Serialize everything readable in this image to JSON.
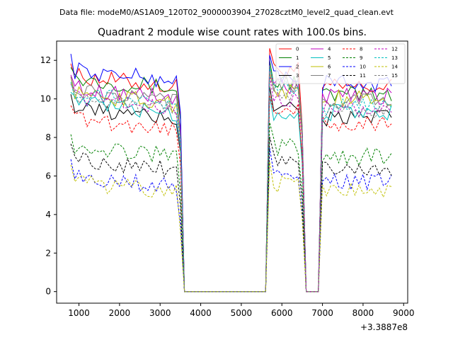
{
  "header": {
    "data_file": "Data file: modeM0/AS1A09_120T02_9000003904_27028cztM0_level2_quad_clean.evt"
  },
  "chart_data": {
    "type": "line",
    "title": "Quadrant 2 module wise count rates with 100.0s bins.",
    "xlabel": "",
    "ylabel": "",
    "x_offset_label": "+3.3887e8",
    "xlim": [
      450,
      9100
    ],
    "ylim": [
      -0.6,
      13.0
    ],
    "x_ticks": [
      1000,
      2000,
      3000,
      4000,
      5000,
      6000,
      7000,
      8000,
      9000
    ],
    "y_ticks": [
      0,
      2,
      4,
      6,
      8,
      10,
      12
    ],
    "grid": false,
    "legend_position": "top-right",
    "segments": [
      [
        800,
        3500
      ],
      [
        5700,
        6500
      ],
      [
        6950,
        8750
      ]
    ],
    "series": [
      {
        "name": "0",
        "color": "#ff0000",
        "dash": "solid",
        "levels": [
          10.8,
          11.5,
          10.6
        ]
      },
      {
        "name": "1",
        "color": "#008000",
        "dash": "solid",
        "levels": [
          10.7,
          10.9,
          10.2
        ]
      },
      {
        "name": "2",
        "color": "#0000ff",
        "dash": "solid",
        "levels": [
          11.1,
          11.2,
          10.8
        ]
      },
      {
        "name": "3",
        "color": "#000000",
        "dash": "solid",
        "levels": [
          9.1,
          9.6,
          9.0
        ]
      },
      {
        "name": "4",
        "color": "#bf00bf",
        "dash": "solid",
        "levels": [
          10.2,
          10.6,
          10.1
        ]
      },
      {
        "name": "5",
        "color": "#00bfbf",
        "dash": "solid",
        "levels": [
          9.4,
          9.2,
          9.3
        ]
      },
      {
        "name": "6",
        "color": "#bfbf00",
        "dash": "solid",
        "levels": [
          9.9,
          10.4,
          10.0
        ]
      },
      {
        "name": "7",
        "color": "#808080",
        "dash": "solid",
        "levels": [
          10.0,
          10.8,
          9.9
        ]
      },
      {
        "name": "8",
        "color": "#ff0000",
        "dash": "dashed",
        "levels": [
          8.6,
          9.3,
          8.7
        ]
      },
      {
        "name": "9",
        "color": "#008000",
        "dash": "dashed",
        "levels": [
          7.2,
          7.5,
          7.0
        ]
      },
      {
        "name": "10",
        "color": "#0000ff",
        "dash": "dashed",
        "levels": [
          5.6,
          6.2,
          5.7
        ]
      },
      {
        "name": "11",
        "color": "#000000",
        "dash": "dashed",
        "levels": [
          6.5,
          6.8,
          6.4
        ]
      },
      {
        "name": "12",
        "color": "#bf00bf",
        "dash": "dashed",
        "levels": [
          9.7,
          10.0,
          9.5
        ]
      },
      {
        "name": "13",
        "color": "#00bfbf",
        "dash": "dashed",
        "levels": [
          9.9,
          10.5,
          9.6
        ]
      },
      {
        "name": "14",
        "color": "#bfbf00",
        "dash": "dashed",
        "levels": [
          5.3,
          5.6,
          5.3
        ]
      },
      {
        "name": "15",
        "color": "#808080",
        "dash": "dashed",
        "levels": [
          9.6,
          10.2,
          9.4
        ]
      }
    ]
  }
}
